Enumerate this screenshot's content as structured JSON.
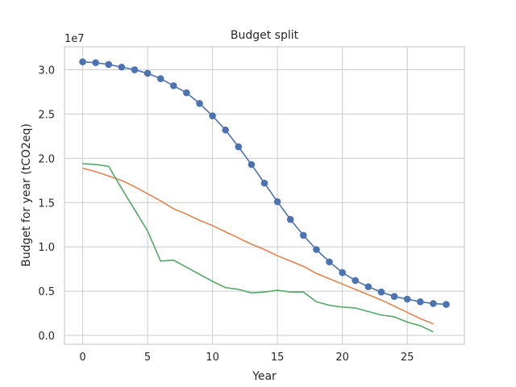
{
  "chart_data": {
    "type": "line",
    "title": "Budget split",
    "xlabel": "Year",
    "ylabel": "Budget for year (tCO2eq)",
    "y_offset_label": "1e7",
    "xlim": [
      -1.4,
      29.4
    ],
    "ylim": [
      -1000000,
      32600000
    ],
    "grid": true,
    "x_ticks": [
      0,
      5,
      10,
      15,
      20,
      25
    ],
    "x_tick_labels": [
      "0",
      "5",
      "10",
      "15",
      "20",
      "25"
    ],
    "y_ticks": [
      0,
      5000000,
      10000000,
      15000000,
      20000000,
      25000000,
      30000000
    ],
    "y_tick_labels": [
      "0.0",
      "0.5",
      "1.0",
      "1.5",
      "2.0",
      "2.5",
      "3.0"
    ],
    "series": [
      {
        "color": "#4c72b0",
        "marker": "circle",
        "x": [
          0,
          1,
          2,
          3,
          4,
          5,
          6,
          7,
          8,
          9,
          10,
          11,
          12,
          13,
          14,
          15,
          16,
          17,
          18,
          19,
          20,
          21,
          22,
          23,
          24,
          25,
          26,
          27,
          28
        ],
        "values": [
          30900000,
          30800000,
          30600000,
          30300000,
          30000000,
          29600000,
          29000000,
          28200000,
          27400000,
          26200000,
          24800000,
          23200000,
          21300000,
          19300000,
          17200000,
          15100000,
          13100000,
          11300000,
          9700000,
          8300000,
          7100000,
          6200000,
          5500000,
          4900000,
          4400000,
          4100000,
          3800000,
          3600000,
          3500000
        ]
      },
      {
        "color": "#dd8452",
        "marker": "none",
        "x": [
          0,
          1,
          2,
          3,
          4,
          5,
          6,
          7,
          8,
          9,
          10,
          11,
          12,
          13,
          14,
          15,
          16,
          17,
          18,
          19,
          20,
          21,
          22,
          23,
          24,
          25,
          26,
          27
        ],
        "values": [
          18900000,
          18500000,
          18000000,
          17500000,
          16800000,
          16000000,
          15200000,
          14300000,
          13700000,
          13000000,
          12400000,
          11700000,
          11000000,
          10300000,
          9700000,
          9000000,
          8400000,
          7800000,
          7000000,
          6400000,
          5800000,
          5200000,
          4600000,
          4000000,
          3300000,
          2600000,
          1900000,
          1300000
        ]
      },
      {
        "color": "#55a868",
        "marker": "none",
        "x": [
          0,
          1,
          2,
          3,
          4,
          5,
          6,
          7,
          8,
          9,
          10,
          11,
          12,
          13,
          14,
          15,
          16,
          17,
          18,
          19,
          20,
          21,
          22,
          23,
          24,
          25,
          26,
          27
        ],
        "values": [
          19400000,
          19300000,
          19100000,
          16600000,
          14200000,
          11800000,
          8400000,
          8500000,
          7700000,
          6900000,
          6100000,
          5400000,
          5200000,
          4800000,
          4900000,
          5100000,
          4900000,
          4900000,
          3800000,
          3400000,
          3200000,
          3100000,
          2700000,
          2300000,
          2100000,
          1500000,
          1100000,
          400000
        ]
      }
    ]
  }
}
